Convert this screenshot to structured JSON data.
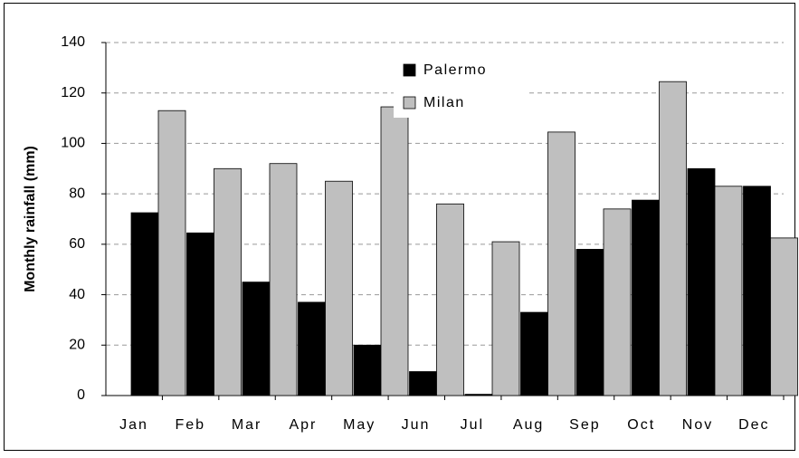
{
  "chart_data": {
    "type": "bar",
    "y_label": "Monthly rainfall (mm)",
    "categories": [
      "Jan",
      "Feb",
      "Mar",
      "Apr",
      "May",
      "Jun",
      "Jul",
      "Aug",
      "Sep",
      "Oct",
      "Nov",
      "Dec"
    ],
    "series": [
      {
        "name": "Palermo",
        "color": "#000000",
        "values": [
          72.5,
          64.5,
          45,
          37,
          20,
          9.5,
          0.5,
          33,
          58,
          77.5,
          90,
          83
        ]
      },
      {
        "name": "Milan",
        "color": "#bfbfbf",
        "values": [
          113,
          90,
          92,
          85,
          114.5,
          76,
          61,
          104.5,
          74,
          124.5,
          83,
          62.5
        ]
      }
    ],
    "ylim": [
      0,
      140
    ],
    "yticks": [
      0,
      20,
      40,
      60,
      80,
      100,
      120,
      140
    ],
    "grid": true
  }
}
